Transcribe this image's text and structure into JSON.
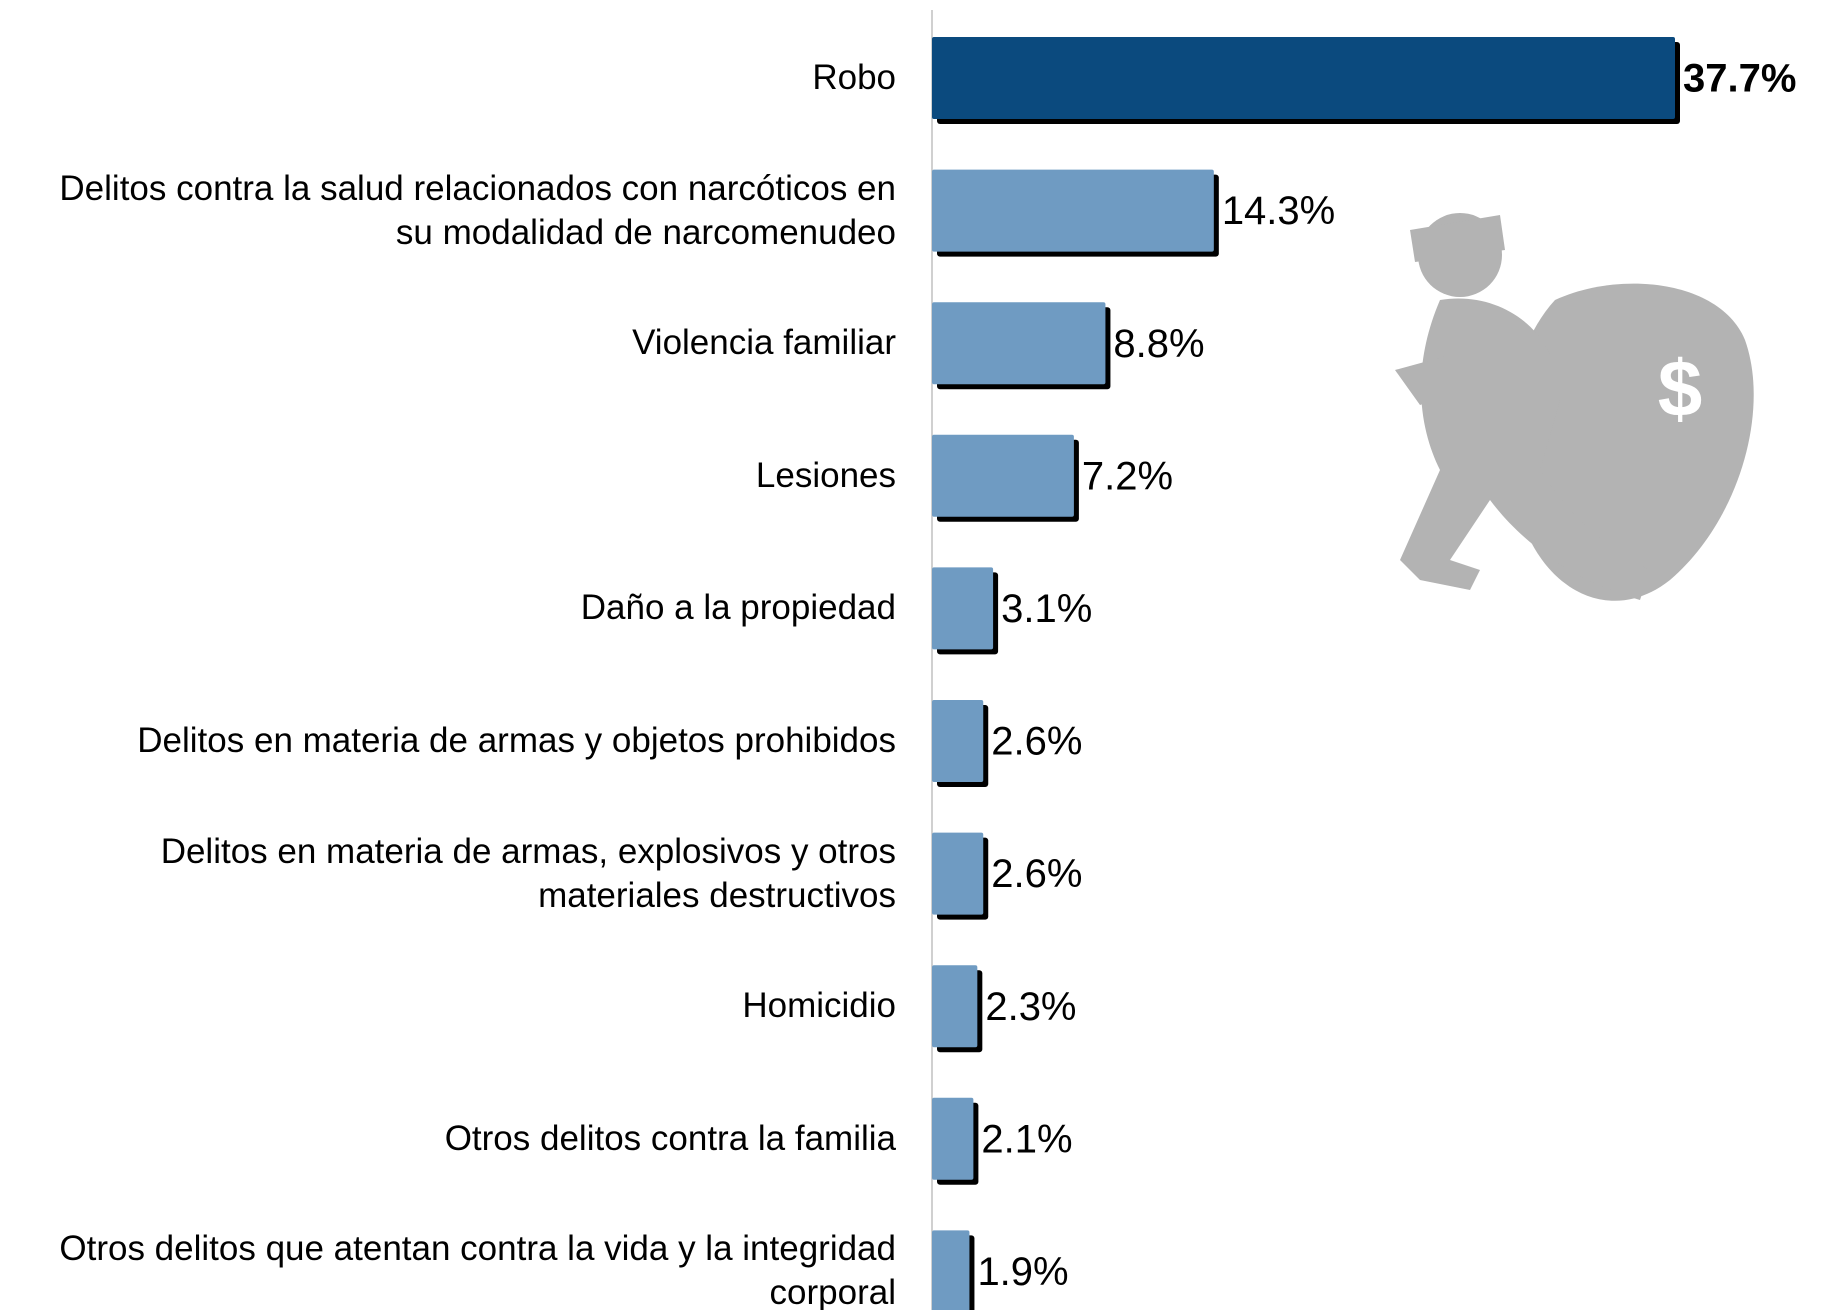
{
  "chart_data": {
    "type": "bar",
    "orientation": "horizontal",
    "categories": [
      "Robo",
      "Delitos contra la salud relacionados con narcóticos en su modalidad de narcomenudeo",
      "Violencia familiar",
      "Lesiones",
      "Daño a la propiedad",
      "Delitos en materia de armas y objetos prohibidos",
      "Delitos en materia de armas, explosivos y otros materiales destructivos",
      "Homicidio",
      "Otros delitos contra la familia",
      "Otros delitos que atentan contra la vida y la integridad corporal"
    ],
    "values": [
      37.7,
      14.3,
      8.8,
      7.2,
      3.1,
      2.6,
      2.6,
      2.3,
      2.1,
      1.9
    ],
    "value_labels": [
      "37.7%",
      "14.3%",
      "8.8%",
      "7.2%",
      "3.1%",
      "2.6%",
      "2.6%",
      "2.3%",
      "2.1%",
      "1.9%"
    ],
    "colors": [
      "#0b4a7e",
      "#6f9bc2",
      "#6f9bc2",
      "#6f9bc2",
      "#6f9bc2",
      "#6f9bc2",
      "#6f9bc2",
      "#6f9bc2",
      "#6f9bc2",
      "#6f9bc2"
    ]
  }
}
